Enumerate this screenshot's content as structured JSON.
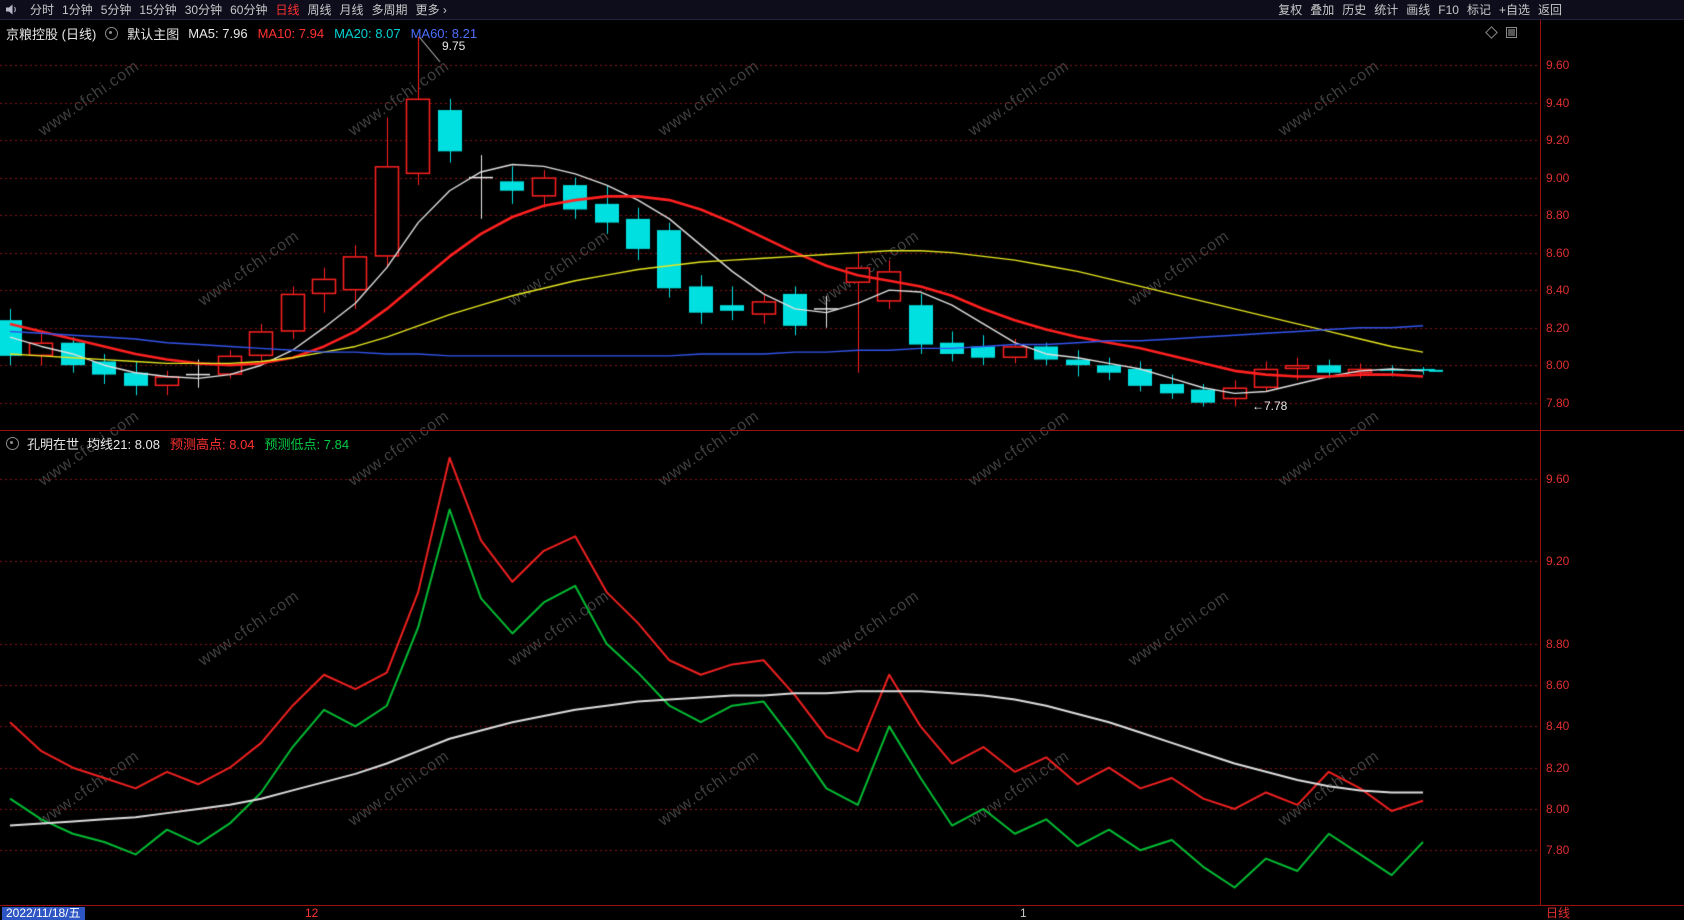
{
  "toolbar": {
    "left_items": [
      {
        "name": "intraday",
        "label": "分时",
        "active": false
      },
      {
        "name": "1min",
        "label": "1分钟",
        "active": false
      },
      {
        "name": "5min",
        "label": "5分钟",
        "active": false
      },
      {
        "name": "15min",
        "label": "15分钟",
        "active": false
      },
      {
        "name": "30min",
        "label": "30分钟",
        "active": false
      },
      {
        "name": "60min",
        "label": "60分钟",
        "active": false
      },
      {
        "name": "daily",
        "label": "日线",
        "active": true
      },
      {
        "name": "weekly",
        "label": "周线",
        "active": false
      },
      {
        "name": "monthly",
        "label": "月线",
        "active": false
      },
      {
        "name": "multi-period",
        "label": "多周期",
        "active": false
      },
      {
        "name": "more",
        "label": "更多 ›",
        "active": false
      }
    ],
    "right_items": [
      {
        "name": "adjust",
        "label": "复权"
      },
      {
        "name": "overlay",
        "label": "叠加"
      },
      {
        "name": "history",
        "label": "历史"
      },
      {
        "name": "statistics",
        "label": "统计"
      },
      {
        "name": "draw-line",
        "label": "画线"
      },
      {
        "name": "f10",
        "label": "F10"
      },
      {
        "name": "mark",
        "label": "标记"
      },
      {
        "name": "add-watchlist",
        "label": "+自选"
      },
      {
        "name": "back",
        "label": "返回"
      }
    ]
  },
  "panel1": {
    "title": "京粮控股 (日线)",
    "overlay_label": "默认主图",
    "ma_labels": [
      {
        "text": "MA5: 7.96",
        "color": "#e8e8e8"
      },
      {
        "text": "MA10: 7.94",
        "color": "#ff3232"
      },
      {
        "text": "MA20: 8.07",
        "color": "#00d2d2"
      },
      {
        "text": "MA60: 8.21",
        "color": "#4d6eff"
      }
    ]
  },
  "panel2": {
    "title": "孔明在世",
    "params": [
      {
        "text": "均线21: 8.08",
        "color": "#e8e8e8"
      },
      {
        "text": "预测高点: 8.04",
        "color": "#ff3232"
      },
      {
        "text": "预测低点: 7.84",
        "color": "#00cc44"
      }
    ]
  },
  "bottom": {
    "date": "2022/11/18/五",
    "period": "日线",
    "month_markers": [
      {
        "label": "12",
        "x": 305,
        "color": "#ff3232"
      },
      {
        "label": "1",
        "x": 1020,
        "color": "#c8c8c8"
      }
    ]
  },
  "watermark": "www.cfchi.com",
  "colors": {
    "up": "#ff2020",
    "down": "#00e0e0",
    "doji": "#e8e8e8",
    "grid": "#801212",
    "axis_text": "#e03030",
    "border": "#9a1010",
    "date_highlight": "#2e55c4"
  },
  "chart_data": [
    {
      "type": "candlestick",
      "title": "京粮控股 (日线)",
      "ylim": [
        7.66,
        9.84
      ],
      "y_ticks": [
        9.6,
        9.4,
        9.2,
        9.0,
        8.8,
        8.6,
        8.4,
        8.2,
        8.0,
        7.8
      ],
      "grid": "dotted-red",
      "candles": [
        [
          8.24,
          8.3,
          8.0,
          8.05
        ],
        [
          8.05,
          8.18,
          8.0,
          8.12
        ],
        [
          8.12,
          8.15,
          7.96,
          8.0
        ],
        [
          8.02,
          8.06,
          7.9,
          7.95
        ],
        [
          7.96,
          8.02,
          7.84,
          7.89
        ],
        [
          7.89,
          7.97,
          7.84,
          7.94
        ],
        [
          7.95,
          8.03,
          7.88,
          7.95
        ],
        [
          7.95,
          8.08,
          7.93,
          8.05
        ],
        [
          8.05,
          8.22,
          8.02,
          8.18
        ],
        [
          8.18,
          8.42,
          8.14,
          8.38
        ],
        [
          8.38,
          8.52,
          8.28,
          8.46
        ],
        [
          8.4,
          8.64,
          8.3,
          8.58
        ],
        [
          8.58,
          9.32,
          8.52,
          9.06
        ],
        [
          9.02,
          9.75,
          8.96,
          9.42
        ],
        [
          9.36,
          9.42,
          9.08,
          9.14
        ],
        [
          9.0,
          9.12,
          8.78,
          9.0
        ],
        [
          8.98,
          9.06,
          8.86,
          8.93
        ],
        [
          8.9,
          9.04,
          8.84,
          9.0
        ],
        [
          8.96,
          9.0,
          8.78,
          8.83
        ],
        [
          8.86,
          8.96,
          8.7,
          8.76
        ],
        [
          8.78,
          8.84,
          8.56,
          8.62
        ],
        [
          8.72,
          8.76,
          8.36,
          8.41
        ],
        [
          8.42,
          8.48,
          8.22,
          8.28
        ],
        [
          8.32,
          8.42,
          8.24,
          8.29
        ],
        [
          8.27,
          8.38,
          8.22,
          8.34
        ],
        [
          8.38,
          8.42,
          8.16,
          8.21
        ],
        [
          8.3,
          8.37,
          8.2,
          8.3
        ],
        [
          8.44,
          8.6,
          7.96,
          8.52
        ],
        [
          8.34,
          8.56,
          8.3,
          8.5
        ],
        [
          8.32,
          8.38,
          8.06,
          8.11
        ],
        [
          8.12,
          8.18,
          8.02,
          8.06
        ],
        [
          8.1,
          8.16,
          8.0,
          8.04
        ],
        [
          8.04,
          8.14,
          8.01,
          8.1
        ],
        [
          8.1,
          8.12,
          8.0,
          8.03
        ],
        [
          8.03,
          8.08,
          7.94,
          8.0
        ],
        [
          8.0,
          8.04,
          7.92,
          7.96
        ],
        [
          7.98,
          8.02,
          7.86,
          7.89
        ],
        [
          7.9,
          7.95,
          7.82,
          7.85
        ],
        [
          7.87,
          7.9,
          7.78,
          7.8
        ],
        [
          7.82,
          7.92,
          7.78,
          7.88
        ],
        [
          7.88,
          8.02,
          7.86,
          7.98
        ],
        [
          7.98,
          8.04,
          7.92,
          8.0
        ],
        [
          8.0,
          8.03,
          7.93,
          7.96
        ],
        [
          7.96,
          8.01,
          7.93,
          7.98
        ],
        [
          7.98,
          8.0,
          7.94,
          7.97
        ],
        [
          7.98,
          7.99,
          7.95,
          7.97
        ]
      ],
      "series": [
        {
          "name": "MA5",
          "color": "#e0e0e0",
          "width": 1.4,
          "values": [
            8.15,
            8.1,
            8.06,
            8.0,
            7.96,
            7.94,
            7.93,
            7.95,
            8.0,
            8.08,
            8.2,
            8.33,
            8.52,
            8.76,
            8.93,
            9.03,
            9.07,
            9.06,
            9.02,
            8.96,
            8.88,
            8.78,
            8.64,
            8.5,
            8.38,
            8.3,
            8.28,
            8.33,
            8.4,
            8.39,
            8.32,
            8.22,
            8.12,
            8.06,
            8.04,
            8.01,
            7.98,
            7.93,
            7.88,
            7.85,
            7.86,
            7.9,
            7.94,
            7.97,
            7.98,
            7.97
          ]
        },
        {
          "name": "MA10",
          "color": "#ff2020",
          "width": 2.6,
          "values": [
            8.22,
            8.18,
            8.14,
            8.1,
            8.06,
            8.03,
            8.01,
            8.0,
            8.01,
            8.04,
            8.1,
            8.18,
            8.3,
            8.44,
            8.58,
            8.7,
            8.79,
            8.85,
            8.88,
            8.9,
            8.9,
            8.88,
            8.83,
            8.76,
            8.68,
            8.6,
            8.53,
            8.48,
            8.45,
            8.42,
            8.37,
            8.3,
            8.24,
            8.19,
            8.15,
            8.12,
            8.09,
            8.05,
            8.01,
            7.97,
            7.95,
            7.94,
            7.94,
            7.95,
            7.95,
            7.94
          ]
        },
        {
          "name": "MA20",
          "color": "#e6e620",
          "width": 1.4,
          "values": [
            8.06,
            8.05,
            8.04,
            8.03,
            8.02,
            8.01,
            8.01,
            8.01,
            8.02,
            8.04,
            8.07,
            8.1,
            8.15,
            8.21,
            8.27,
            8.32,
            8.37,
            8.41,
            8.45,
            8.48,
            8.51,
            8.53,
            8.55,
            8.56,
            8.57,
            8.58,
            8.59,
            8.6,
            8.61,
            8.61,
            8.6,
            8.58,
            8.56,
            8.53,
            8.5,
            8.46,
            8.42,
            8.38,
            8.34,
            8.3,
            8.26,
            8.22,
            8.18,
            8.14,
            8.1,
            8.07
          ]
        },
        {
          "name": "MA60",
          "color": "#3355ee",
          "width": 1.4,
          "values": [
            8.18,
            8.17,
            8.16,
            8.15,
            8.14,
            8.12,
            8.11,
            8.1,
            8.09,
            8.08,
            8.07,
            8.07,
            8.06,
            8.06,
            8.05,
            8.05,
            8.05,
            8.05,
            8.05,
            8.05,
            8.05,
            8.05,
            8.06,
            8.06,
            8.06,
            8.07,
            8.07,
            8.08,
            8.08,
            8.09,
            8.09,
            8.1,
            8.11,
            8.11,
            8.12,
            8.13,
            8.13,
            8.14,
            8.15,
            8.16,
            8.17,
            8.18,
            8.19,
            8.2,
            8.2,
            8.21
          ]
        }
      ],
      "annotations": [
        {
          "text": "9.75",
          "index": 13,
          "at": "high"
        },
        {
          "text": "←7.78",
          "index": 38,
          "at": "low"
        }
      ]
    },
    {
      "type": "line",
      "title": "孔明在世",
      "ylim": [
        7.54,
        9.83
      ],
      "y_ticks": [
        9.6,
        9.2,
        8.8,
        8.6,
        8.4,
        8.2,
        8.0,
        7.8
      ],
      "grid": "dotted-red",
      "series": [
        {
          "name": "预测高点",
          "color": "#ee2020",
          "width": 2,
          "values": [
            8.42,
            8.28,
            8.2,
            8.15,
            8.1,
            8.18,
            8.12,
            8.2,
            8.32,
            8.5,
            8.65,
            8.58,
            8.66,
            9.05,
            9.7,
            9.3,
            9.1,
            9.25,
            9.32,
            9.05,
            8.9,
            8.72,
            8.65,
            8.7,
            8.72,
            8.55,
            8.35,
            8.28,
            8.65,
            8.4,
            8.22,
            8.3,
            8.18,
            8.25,
            8.12,
            8.2,
            8.1,
            8.15,
            8.05,
            8.0,
            8.08,
            8.02,
            8.18,
            8.1,
            7.99,
            8.04
          ]
        },
        {
          "name": "预测低点",
          "color": "#00bb33",
          "width": 2,
          "values": [
            8.05,
            7.95,
            7.88,
            7.84,
            7.78,
            7.9,
            7.83,
            7.93,
            8.08,
            8.3,
            8.48,
            8.4,
            8.5,
            8.88,
            9.45,
            9.02,
            8.85,
            9.0,
            9.08,
            8.8,
            8.66,
            8.5,
            8.42,
            8.5,
            8.52,
            8.32,
            8.1,
            8.02,
            8.4,
            8.15,
            7.92,
            8.0,
            7.88,
            7.95,
            7.82,
            7.9,
            7.8,
            7.85,
            7.72,
            7.62,
            7.76,
            7.7,
            7.88,
            7.78,
            7.68,
            7.84
          ]
        },
        {
          "name": "均线21",
          "color": "#dddddd",
          "width": 2,
          "values": [
            7.92,
            7.93,
            7.94,
            7.95,
            7.96,
            7.98,
            8.0,
            8.02,
            8.05,
            8.09,
            8.13,
            8.17,
            8.22,
            8.28,
            8.34,
            8.38,
            8.42,
            8.45,
            8.48,
            8.5,
            8.52,
            8.53,
            8.54,
            8.55,
            8.55,
            8.56,
            8.56,
            8.57,
            8.57,
            8.57,
            8.56,
            8.55,
            8.53,
            8.5,
            8.46,
            8.42,
            8.37,
            8.32,
            8.27,
            8.22,
            8.18,
            8.14,
            8.11,
            8.09,
            8.08,
            8.08
          ]
        }
      ]
    }
  ]
}
